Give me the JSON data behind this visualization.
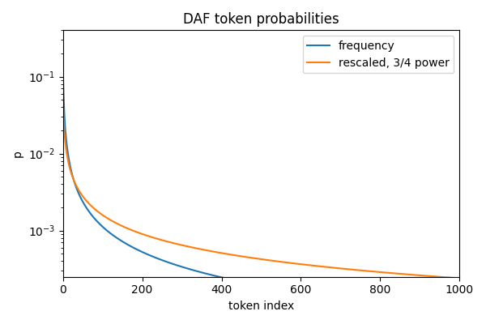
{
  "title": "DAF token probabilities",
  "xlabel": "token index",
  "ylabel": "p",
  "n_tokens": 1001,
  "zipf_exponent": 1.1,
  "power": 0.75,
  "line_frequency_color": "#1f77b4",
  "line_rescaled_color": "#ff7f0e",
  "legend_frequency": "frequency",
  "legend_rescaled": "rescaled, 3/4 power",
  "xlim": [
    0,
    1000
  ],
  "ylim": [
    0.00025,
    0.4
  ],
  "figsize": [
    6.0,
    4.0
  ],
  "dpi": 100
}
